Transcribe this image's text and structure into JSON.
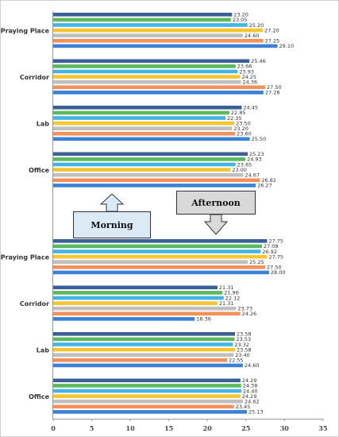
{
  "chart_data": [
    {
      "type": "bar",
      "panel": "morning",
      "orientation": "horizontal",
      "categories": [
        "Praying Place",
        "Corridor",
        "Lab",
        "Office"
      ],
      "series_colors": [
        "#3b5f97",
        "#5cb85c",
        "#42b4e6",
        "#f7c530",
        "#bfbfbf",
        "#f4915b",
        "#3b82d6"
      ],
      "values": [
        [
          23.2,
          23.05,
          25.2,
          27.2,
          24.6,
          27.25,
          29.1
        ],
        [
          25.46,
          23.66,
          23.93,
          24.25,
          24.36,
          27.5,
          27.28
        ],
        [
          24.45,
          22.85,
          22.35,
          23.5,
          23.2,
          23.6,
          25.5
        ],
        [
          25.23,
          24.93,
          23.65,
          23.0,
          24.67,
          26.82,
          26.27
        ]
      ],
      "xlim": [
        0,
        35
      ],
      "grid": false
    },
    {
      "type": "bar",
      "panel": "afternoon",
      "orientation": "horizontal",
      "categories": [
        "Praying Place",
        "Corridor",
        "Lab",
        "Office"
      ],
      "series_colors": [
        "#3b5f97",
        "#5cb85c",
        "#42b4e6",
        "#f7c530",
        "#bfbfbf",
        "#f4915b",
        "#3b82d6"
      ],
      "values": [
        [
          27.75,
          27.08,
          26.92,
          27.75,
          25.25,
          27.5,
          28.0
        ],
        [
          21.31,
          21.96,
          22.12,
          21.31,
          23.73,
          24.26,
          18.36
        ],
        [
          23.58,
          23.53,
          23.32,
          23.58,
          23.4,
          22.55,
          24.6
        ],
        [
          24.29,
          24.38,
          24.4,
          24.29,
          24.62,
          23.45,
          25.13
        ]
      ],
      "xlim": [
        0,
        35
      ],
      "xticks": [
        "0",
        "5",
        "10",
        "15",
        "20",
        "25",
        "30",
        "35"
      ],
      "grid": false
    }
  ],
  "annotations": {
    "morning": "Morning",
    "afternoon": "Afternoon"
  }
}
